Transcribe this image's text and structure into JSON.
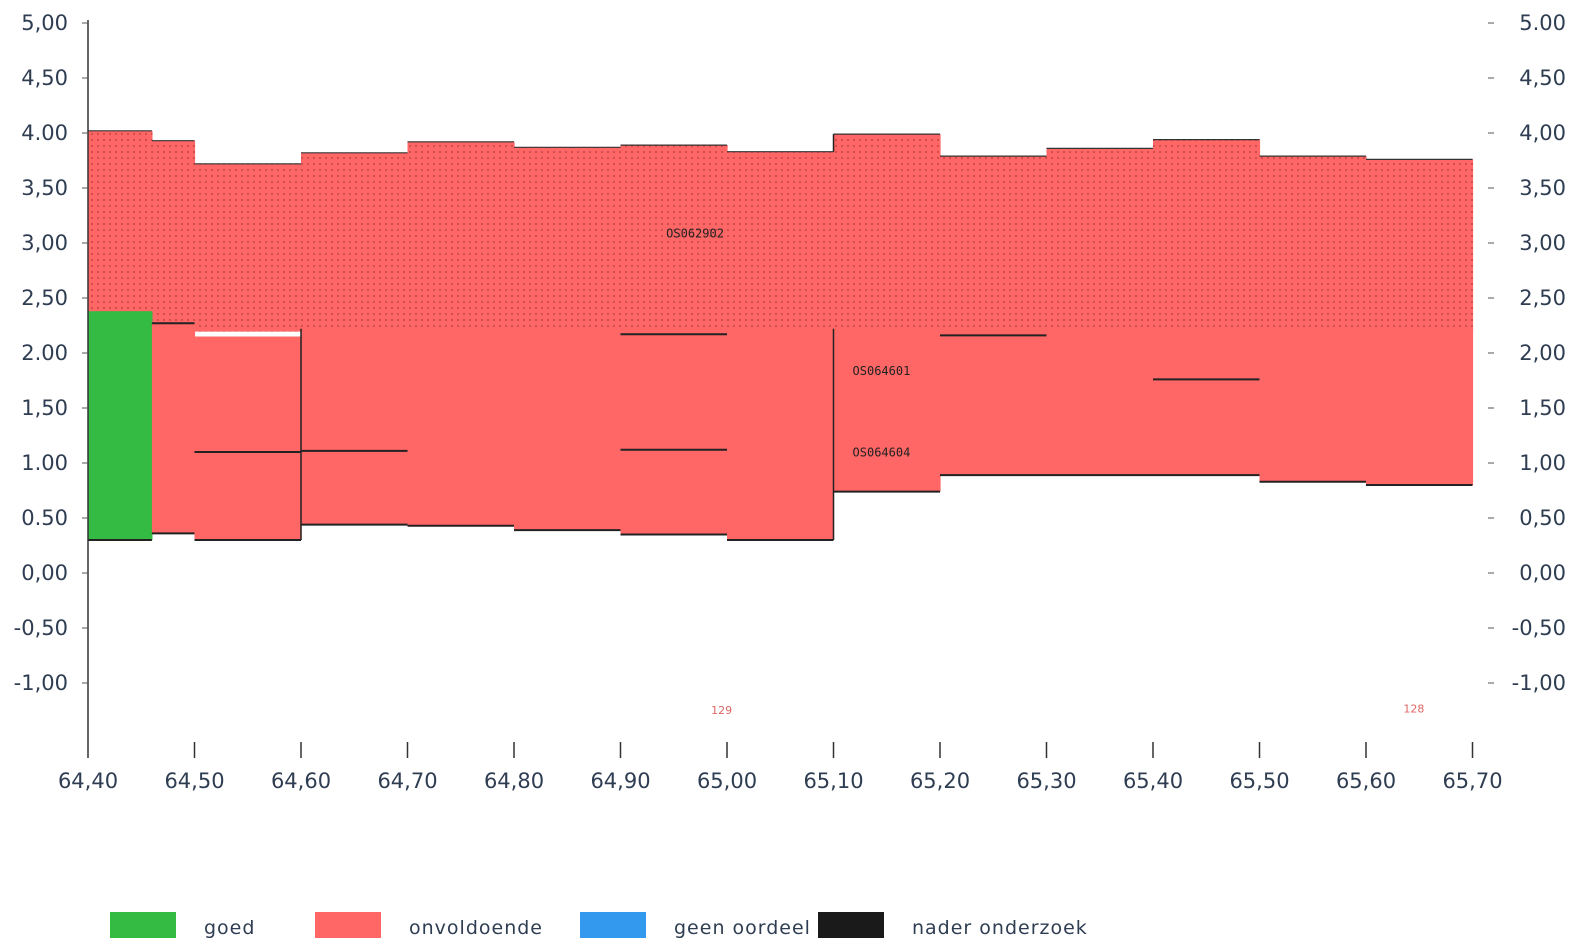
{
  "chart_data": {
    "type": "area",
    "x_ticks": [
      "64,40",
      "64,50",
      "64,60",
      "64,70",
      "64,80",
      "64,90",
      "65,00",
      "65,10",
      "65,20",
      "65,30",
      "65,40",
      "65,50",
      "65,60",
      "65,70"
    ],
    "x_tick_values": [
      64.4,
      64.5,
      64.6,
      64.7,
      64.8,
      64.9,
      65.0,
      65.1,
      65.2,
      65.3,
      65.4,
      65.5,
      65.6,
      65.7
    ],
    "xlim": [
      64.4,
      65.7
    ],
    "y_ticks_left": [
      "5,00",
      "4,50",
      "4.00",
      "3,50",
      "3,00",
      "2,50",
      "2.00",
      "1,50",
      "1.00",
      "0.50",
      "0,00",
      "-0,50",
      "-1,00"
    ],
    "y_ticks_right": [
      "5.00",
      "4,50",
      "4,00",
      "3,50",
      "3,00",
      "2,50",
      "2,00",
      "1,50",
      "1,00",
      "0,50",
      "0,00",
      "-0,50",
      "-1,00"
    ],
    "y_tick_values": [
      5,
      4.5,
      4,
      3.5,
      3,
      2.5,
      2,
      1.5,
      1,
      0.5,
      0,
      -0.5,
      -1
    ],
    "ylim": [
      -1.55,
      5.1
    ],
    "grid": false,
    "upper_layer": {
      "name": "OS062902",
      "color": "#ff6666",
      "pattern": "dotted",
      "bottom": 2.2,
      "top_profile": [
        {
          "x0": 64.4,
          "x1": 64.46,
          "top": 4.02
        },
        {
          "x0": 64.46,
          "x1": 64.5,
          "top": 3.93
        },
        {
          "x0": 64.5,
          "x1": 64.6,
          "top": 3.72
        },
        {
          "x0": 64.6,
          "x1": 64.7,
          "top": 3.82
        },
        {
          "x0": 64.7,
          "x1": 64.8,
          "top": 3.92
        },
        {
          "x0": 64.8,
          "x1": 64.9,
          "top": 3.87
        },
        {
          "x0": 64.9,
          "x1": 65.0,
          "top": 3.89
        },
        {
          "x0": 65.0,
          "x1": 65.1,
          "top": 3.83
        },
        {
          "x0": 65.1,
          "x1": 65.2,
          "top": 3.99
        },
        {
          "x0": 65.2,
          "x1": 65.3,
          "top": 3.79
        },
        {
          "x0": 65.3,
          "x1": 65.4,
          "top": 3.86
        },
        {
          "x0": 65.4,
          "x1": 65.5,
          "top": 3.94
        },
        {
          "x0": 65.5,
          "x1": 65.6,
          "top": 3.79
        },
        {
          "x0": 65.6,
          "x1": 65.7,
          "top": 3.76
        }
      ]
    },
    "lower_layer": {
      "color": "#ff6666",
      "segments": [
        {
          "x0": 64.4,
          "x1": 64.46,
          "top": 2.38,
          "bottom": 0.3,
          "rating": "goed"
        },
        {
          "x0": 64.46,
          "x1": 64.5,
          "top": 2.27,
          "bottom": 0.36,
          "rating": "onvoldoende"
        },
        {
          "x0": 64.5,
          "x1": 64.6,
          "top": 2.15,
          "bottom": 0.3,
          "rating": "onvoldoende"
        },
        {
          "x0": 64.6,
          "x1": 64.7,
          "top": 2.22,
          "bottom": 0.44,
          "rating": "onvoldoende"
        },
        {
          "x0": 64.7,
          "x1": 64.8,
          "top": 2.22,
          "bottom": 0.43,
          "rating": "onvoldoende"
        },
        {
          "x0": 64.8,
          "x1": 64.9,
          "top": 2.22,
          "bottom": 0.39,
          "rating": "onvoldoende"
        },
        {
          "x0": 64.9,
          "x1": 65.0,
          "top": 2.22,
          "bottom": 0.35,
          "rating": "onvoldoende"
        },
        {
          "x0": 65.0,
          "x1": 65.1,
          "top": 2.22,
          "bottom": 0.3,
          "rating": "onvoldoende"
        },
        {
          "x0": 65.1,
          "x1": 65.2,
          "top": 2.22,
          "bottom": 0.74,
          "rating": "onvoldoende"
        },
        {
          "x0": 65.2,
          "x1": 65.3,
          "top": 2.22,
          "bottom": 0.89,
          "rating": "onvoldoende"
        },
        {
          "x0": 65.3,
          "x1": 65.4,
          "top": 2.22,
          "bottom": 0.89,
          "rating": "onvoldoende"
        },
        {
          "x0": 65.4,
          "x1": 65.5,
          "top": 2.22,
          "bottom": 0.89,
          "rating": "onvoldoende"
        },
        {
          "x0": 65.5,
          "x1": 65.6,
          "top": 2.22,
          "bottom": 0.83,
          "rating": "onvoldoende"
        },
        {
          "x0": 65.6,
          "x1": 65.7,
          "top": 2.22,
          "bottom": 0.8,
          "rating": "onvoldoende"
        }
      ]
    },
    "boundary_lines": [
      {
        "x0": 64.46,
        "x1": 64.5,
        "y": 2.27
      },
      {
        "x0": 64.9,
        "x1": 65.0,
        "y": 2.17
      },
      {
        "x0": 65.2,
        "x1": 65.3,
        "y": 2.16
      },
      {
        "x0": 64.5,
        "x1": 64.6,
        "y": 1.1
      },
      {
        "x0": 64.6,
        "x1": 64.7,
        "y": 1.11
      },
      {
        "x0": 64.9,
        "x1": 65.0,
        "y": 1.12
      },
      {
        "x0": 65.4,
        "x1": 65.5,
        "y": 1.76
      }
    ],
    "annotations": [
      {
        "text": "OS062902",
        "x": 64.97,
        "y": 3.05,
        "kind": "segment"
      },
      {
        "text": "OS064601",
        "x": 65.145,
        "y": 1.8,
        "kind": "segment"
      },
      {
        "text": "OS064604",
        "x": 65.145,
        "y": 1.06,
        "kind": "segment"
      },
      {
        "text": "129",
        "x": 64.995,
        "y": -1.28,
        "kind": "marker"
      },
      {
        "text": "128",
        "x": 65.645,
        "y": -1.27,
        "kind": "marker"
      }
    ],
    "legend": {
      "placement": "bottom",
      "items": [
        {
          "label": "goed",
          "color": "#33bb44"
        },
        {
          "label": "onvoldoende",
          "color": "#ff6666"
        },
        {
          "label": "geen oordeel",
          "color": "#3399ee"
        },
        {
          "label": "nader onderzoek",
          "color": "#1a1a1a"
        }
      ]
    }
  }
}
